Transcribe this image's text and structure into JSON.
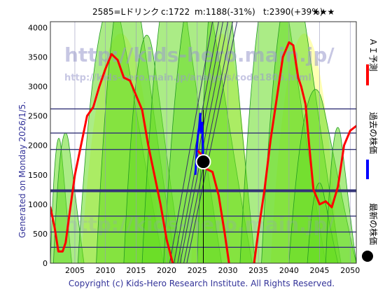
{
  "header": {
    "code_name": "2585=Lドリンク",
    "current": "c:1722",
    "min": "m:1188(-31%)",
    "target": "t:2390(+39%)",
    "stars": "★★★"
  },
  "side_label": "Generated on Monday 2026/1/5.",
  "footer": "Copyright (c) Kids-Hero Research Institute. All Rights Reserved.",
  "watermarks": {
    "url_main": "http://kids-hero.main.jp/",
    "url_sub": "http://kids-hero.main.jp/analysis/code1805.html",
    "url_bottom": "http://kids-hero.main.jp/"
  },
  "legend": {
    "ai_forecast": "ＡＩ予測",
    "past_price": "過去の株価",
    "latest_price": "最新の株価"
  },
  "colors": {
    "ai_forecast": "#ff0000",
    "past_price": "#0000ff",
    "latest_marker": "#000000",
    "green_band": "#66dd22",
    "yellow_band": "#ffff99",
    "horizontal_lines": "#333377"
  },
  "chart_data": {
    "type": "line",
    "xlim": [
      2001,
      2051
    ],
    "ylim": [
      0,
      4100
    ],
    "x_ticks": [
      2005,
      2010,
      2015,
      2020,
      2025,
      2030,
      2035,
      2040,
      2045,
      2050
    ],
    "y_ticks": [
      0,
      500,
      1000,
      1500,
      2000,
      2500,
      3000,
      3500,
      4000
    ],
    "horizontal_levels": [
      270,
      530,
      800,
      1230,
      1930,
      2210,
      2620
    ],
    "thick_level": 1230,
    "latest_point": {
      "x": 2026.0,
      "y": 1722
    },
    "series": [
      {
        "key": "ai_forecast",
        "points": [
          [
            2001,
            950
          ],
          [
            2001.7,
            600
          ],
          [
            2002.3,
            200
          ],
          [
            2003,
            200
          ],
          [
            2003.5,
            350
          ],
          [
            2004.2,
            900
          ],
          [
            2005,
            1500
          ],
          [
            2006,
            2000
          ],
          [
            2007,
            2500
          ],
          [
            2008,
            2650
          ],
          [
            2009,
            3000
          ],
          [
            2010,
            3300
          ],
          [
            2011,
            3550
          ],
          [
            2012,
            3450
          ],
          [
            2013,
            3150
          ],
          [
            2014,
            3100
          ],
          [
            2015,
            2850
          ],
          [
            2016,
            2600
          ],
          [
            2017,
            2000
          ],
          [
            2018,
            1500
          ],
          [
            2019,
            1000
          ],
          [
            2020,
            400
          ],
          [
            2021,
            0
          ]
        ],
        "points_b": [
          [
            2025.2,
            1900
          ],
          [
            2026,
            1800
          ],
          [
            2026.5,
            1600
          ],
          [
            2027.5,
            1550
          ],
          [
            2028.5,
            1150
          ],
          [
            2029.5,
            500
          ],
          [
            2030.2,
            0
          ]
        ],
        "points_c": [
          [
            2034.3,
            0
          ],
          [
            2035,
            550
          ],
          [
            2036,
            1250
          ],
          [
            2037,
            2100
          ],
          [
            2038,
            2800
          ],
          [
            2039,
            3500
          ],
          [
            2040,
            3750
          ],
          [
            2040.7,
            3700
          ],
          [
            2041.5,
            3150
          ],
          [
            2042,
            3000
          ],
          [
            2042.7,
            2700
          ],
          [
            2043.3,
            2000
          ],
          [
            2044,
            1250
          ],
          [
            2045,
            1000
          ],
          [
            2046,
            1050
          ],
          [
            2047,
            950
          ],
          [
            2048,
            1300
          ],
          [
            2049,
            2000
          ],
          [
            2050,
            2250
          ],
          [
            2051,
            2330
          ]
        ]
      },
      {
        "key": "past_price",
        "points": [
          [
            2024.7,
            1500
          ],
          [
            2024.9,
            1900
          ],
          [
            2025.1,
            2150
          ],
          [
            2025.3,
            2300
          ],
          [
            2025.5,
            2550
          ],
          [
            2025.6,
            2200
          ],
          [
            2025.8,
            2400
          ],
          [
            2026.0,
            1722
          ]
        ]
      }
    ]
  }
}
